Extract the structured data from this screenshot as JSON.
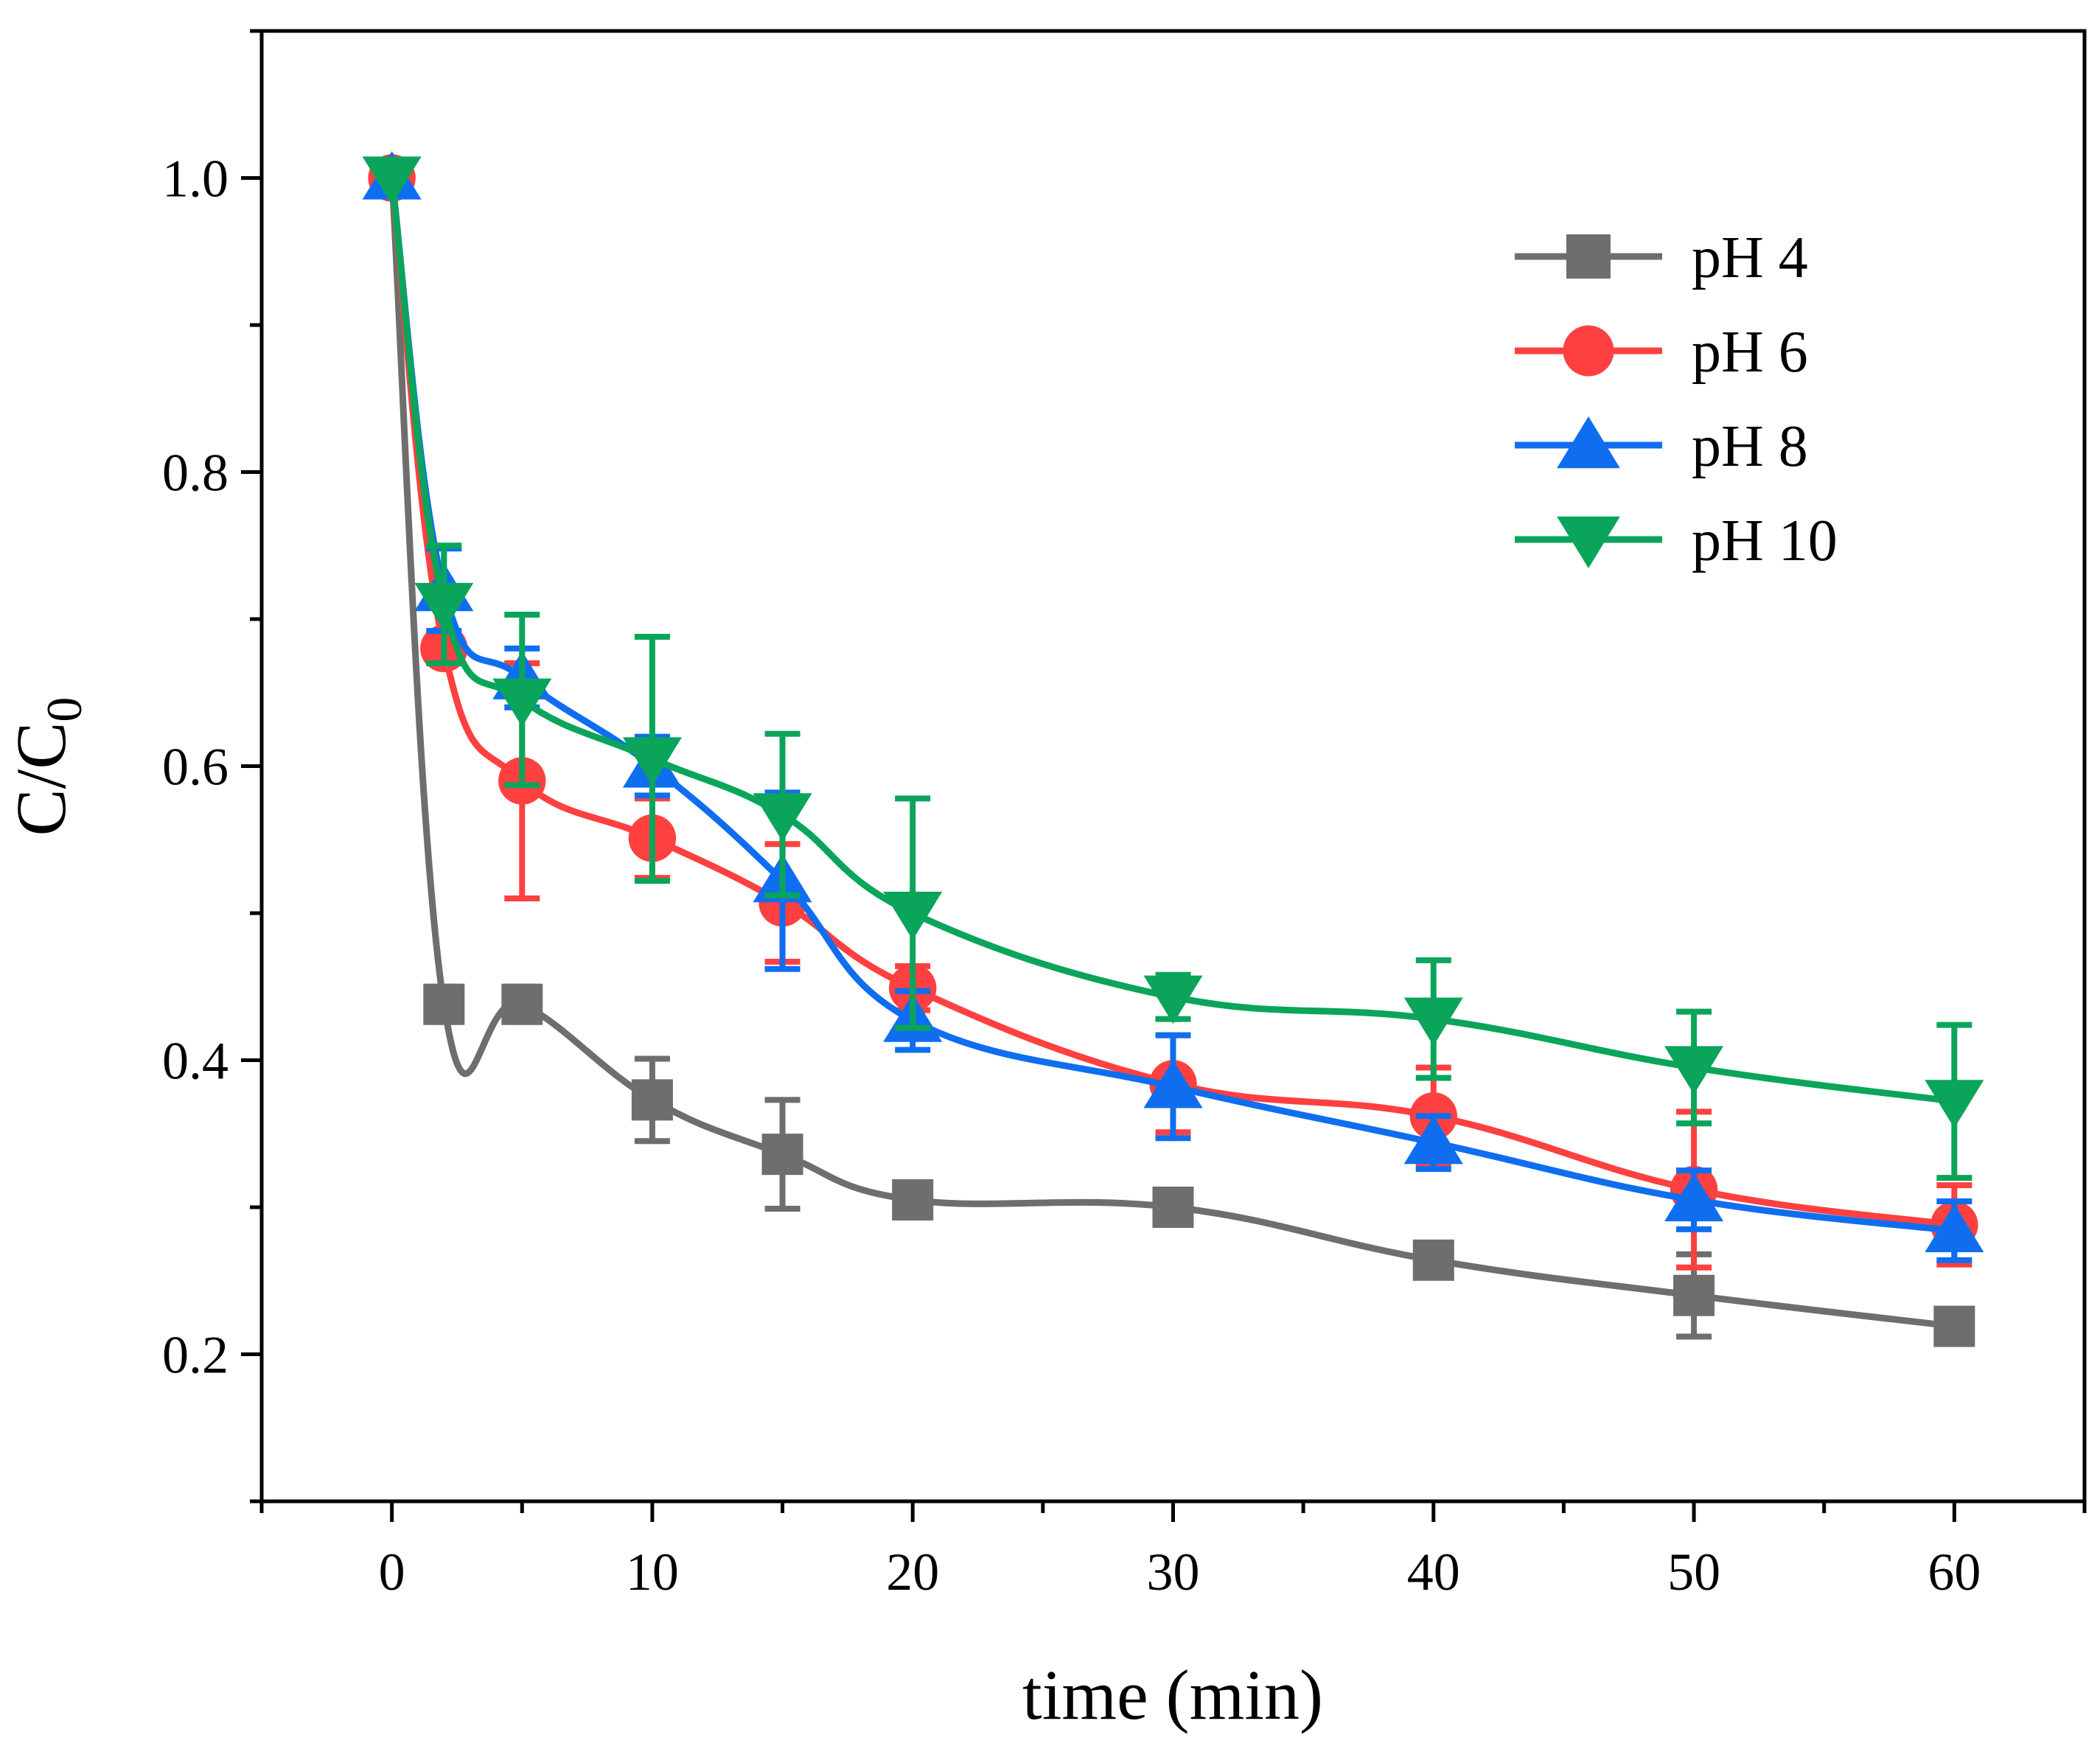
{
  "chart_data": {
    "type": "line",
    "title": "",
    "xlabel": "time (min)",
    "ylabel_main": "C/C",
    "ylabel_sub": "0",
    "xlim": [
      -5,
      65
    ],
    "ylim": [
      0.1,
      1.1
    ],
    "xticks": [
      0,
      10,
      20,
      30,
      40,
      50,
      60
    ],
    "xtick_labels": [
      "0",
      "10",
      "20",
      "30",
      "40",
      "50",
      "60"
    ],
    "xminor": [
      -5,
      5,
      15,
      25,
      35,
      45,
      55,
      65
    ],
    "yticks": [
      0.2,
      0.4,
      0.6,
      0.8,
      1.0
    ],
    "ytick_labels": [
      "0.2",
      "0.4",
      "0.6",
      "0.8",
      "1.0"
    ],
    "yminor": [
      0.1,
      0.3,
      0.5,
      0.7,
      0.9,
      1.1
    ],
    "grid": false,
    "legend_position": "top-right",
    "x": [
      0,
      2,
      5,
      10,
      15,
      20,
      30,
      40,
      50,
      60
    ],
    "series": [
      {
        "name": "pH 4",
        "color": "#6e6e6e",
        "marker": "square",
        "values": [
          1.0,
          0.438,
          0.438,
          0.373,
          0.336,
          0.305,
          0.3,
          0.264,
          0.24,
          0.219
        ],
        "errors": [
          0.0,
          0.012,
          0.012,
          0.028,
          0.037,
          0.01,
          0.01,
          0.01,
          0.028,
          0.01
        ]
      },
      {
        "name": "pH 6",
        "color": "#ff4040",
        "marker": "circle",
        "values": [
          1.0,
          0.68,
          0.59,
          0.551,
          0.507,
          0.449,
          0.384,
          0.362,
          0.312,
          0.288
        ],
        "errors": [
          0.0,
          0.01,
          0.08,
          0.027,
          0.04,
          0.015,
          0.033,
          0.033,
          0.053,
          0.027
        ]
      },
      {
        "name": "pH 8",
        "color": "#0f6ef0",
        "marker": "triangle-up",
        "values": [
          1.0,
          0.72,
          0.66,
          0.6,
          0.522,
          0.427,
          0.382,
          0.344,
          0.305,
          0.284
        ],
        "errors": [
          0.0,
          0.028,
          0.02,
          0.02,
          0.06,
          0.02,
          0.035,
          0.018,
          0.02,
          0.02
        ]
      },
      {
        "name": "pH 10",
        "color": "#0aa55a",
        "marker": "triangle-down",
        "values": [
          1.0,
          0.71,
          0.645,
          0.605,
          0.567,
          0.5,
          0.443,
          0.428,
          0.395,
          0.372
        ],
        "errors": [
          0.0,
          0.04,
          0.058,
          0.083,
          0.055,
          0.078,
          0.015,
          0.04,
          0.038,
          0.052
        ]
      }
    ]
  }
}
